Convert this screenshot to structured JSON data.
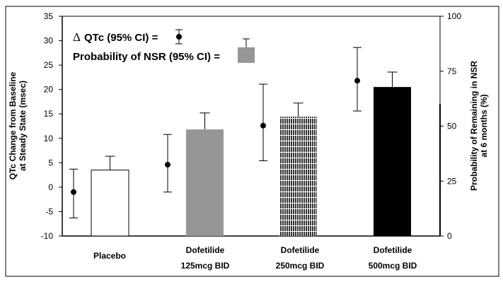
{
  "chart_data": {
    "type": "bar",
    "categories": [
      {
        "line1": "Placebo",
        "line2": ""
      },
      {
        "line1": "Dofetilide",
        "line2": "125mcg BID"
      },
      {
        "line1": "Dofetilide",
        "line2": "250mcg BID"
      },
      {
        "line1": "Dofetilide",
        "line2": "500mcg BID"
      }
    ],
    "ylabel": {
      "line1": "QTc Change from Baseline",
      "line2": "at Steady State (msec)"
    },
    "y2label": {
      "line1": "Probability of Remaining in NSR",
      "line2": "at 6 months (%)"
    },
    "ylim": [
      -10,
      35
    ],
    "yticks": [
      "-10",
      "-5",
      "0",
      "5",
      "10",
      "15",
      "20",
      "25",
      "30",
      "35"
    ],
    "y2lim": [
      0,
      100
    ],
    "y2ticks": [
      "0",
      "25",
      "50",
      "75",
      "100"
    ],
    "grid": false,
    "legend": {
      "position": "top-left",
      "qtc_label": "QTc (95% CI) =",
      "qtc_symbol": "Δ",
      "nsr_label": "Probability of NSR (95% CI) ="
    },
    "series": [
      {
        "name": "QTc (95% CI)",
        "axis": "left",
        "type": "point",
        "values": [
          -1.0,
          4.6,
          12.6,
          21.8
        ],
        "ci_low": [
          -6.3,
          -1.0,
          5.4,
          15.6
        ],
        "ci_high": [
          3.7,
          10.8,
          21.1,
          28.6
        ]
      },
      {
        "name": "Probability of NSR (95% CI)",
        "axis": "right",
        "type": "bar",
        "values": [
          30,
          48.5,
          54.3,
          67.8
        ],
        "ci_high": [
          36.3,
          56,
          60.5,
          74.6
        ],
        "fills": [
          "#ffffff",
          "#969696",
          "pattern-vertical-lines",
          "#000000"
        ]
      }
    ]
  }
}
